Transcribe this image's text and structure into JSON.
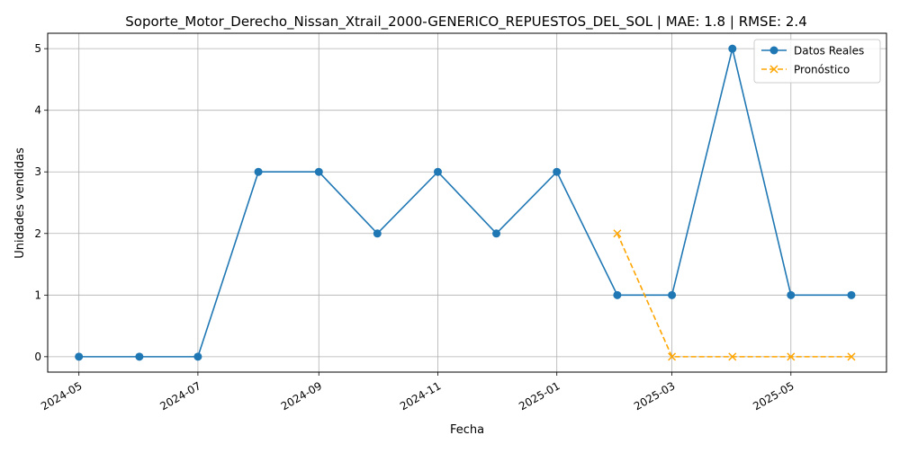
{
  "chart_data": {
    "type": "line",
    "title": "Soporte_Motor_Derecho_Nissan_Xtrail_2000-GENERICO_REPUESTOS_DEL_SOL | MAE: 1.8 | RMSE: 2.4",
    "xlabel": "Fecha",
    "ylabel": "Unidades vendidas",
    "x_ticks": [
      "2024-05",
      "2024-07",
      "2024-09",
      "2024-11",
      "2025-01",
      "2025-03",
      "2025-05"
    ],
    "y_ticks": [
      "0",
      "1",
      "2",
      "3",
      "4",
      "5"
    ],
    "ylim": [
      -0.25,
      5.25
    ],
    "grid": true,
    "legend_position": "top-right",
    "series": [
      {
        "name": "Datos Reales",
        "color": "#1f77b4",
        "marker": "circle",
        "line_style": "solid",
        "x": [
          "2024-05-01",
          "2024-06-01",
          "2024-07-01",
          "2024-08-01",
          "2024-09-01",
          "2024-10-01",
          "2024-11-01",
          "2024-12-01",
          "2025-01-01",
          "2025-02-01",
          "2025-03-01",
          "2025-04-01",
          "2025-05-01",
          "2025-06-01"
        ],
        "values": [
          0,
          0,
          0,
          3,
          3,
          2,
          3,
          2,
          3,
          1,
          1,
          5,
          1,
          1
        ]
      },
      {
        "name": "Pronóstico",
        "color": "#ffa500",
        "marker": "x",
        "line_style": "dashed",
        "x": [
          "2025-02-01",
          "2025-03-01",
          "2025-04-01",
          "2025-05-01",
          "2025-06-01"
        ],
        "values": [
          2,
          0,
          0,
          0,
          0
        ]
      }
    ]
  }
}
